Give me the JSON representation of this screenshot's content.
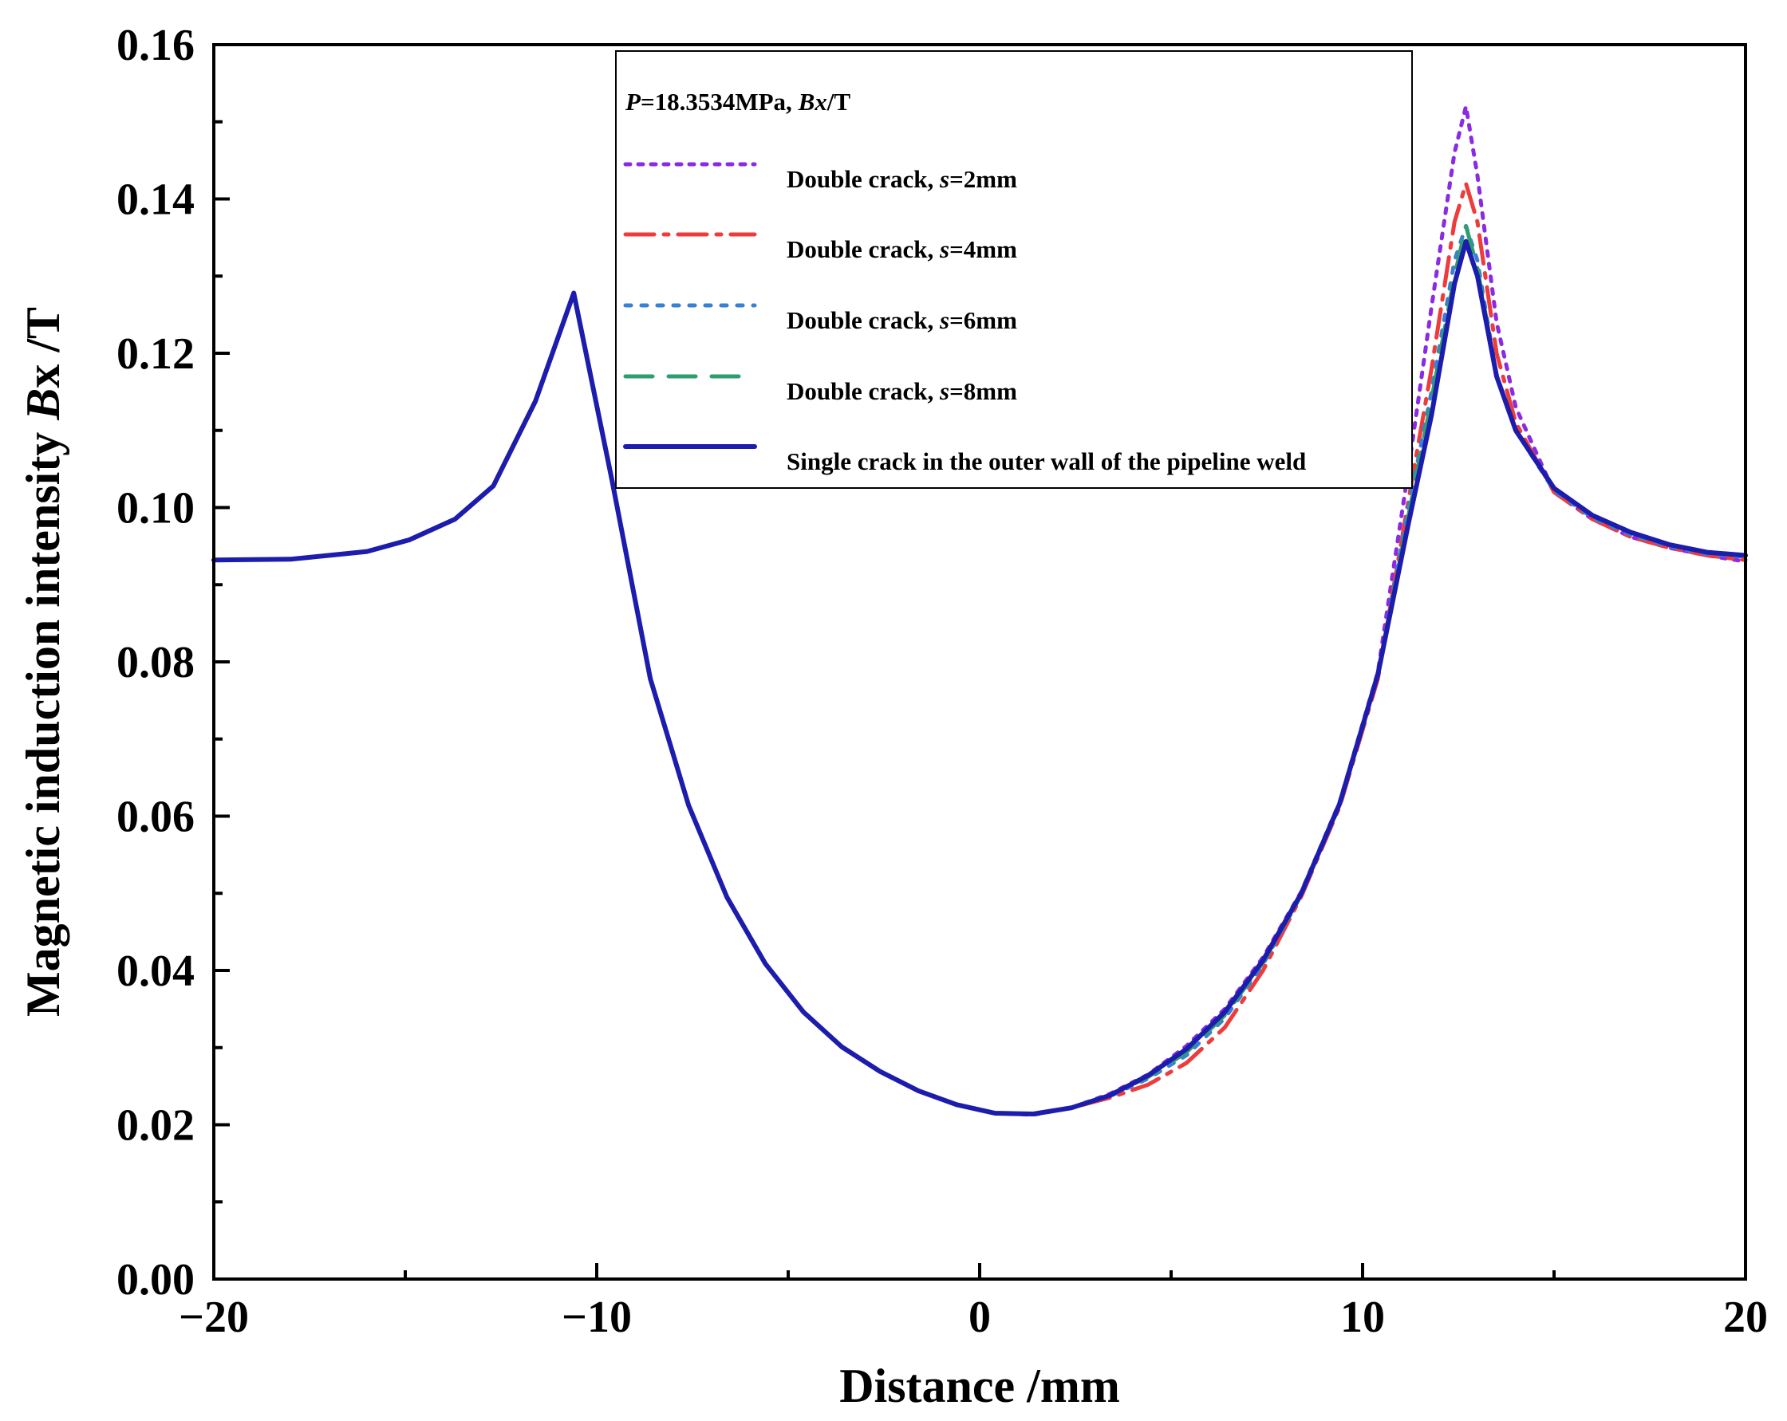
{
  "chart_data": {
    "type": "line",
    "title": "",
    "xlabel": "Distance /mm",
    "ylabel_parts": [
      "Magnetic induction intensity ",
      "B",
      "x",
      " /T"
    ],
    "xlim": [
      -20,
      20
    ],
    "ylim": [
      0,
      0.16
    ],
    "x_ticks": [
      -20,
      -10,
      0,
      10,
      20
    ],
    "x_tick_labels": [
      "−20",
      "−10",
      "0",
      "10",
      "20"
    ],
    "y_ticks": [
      0,
      0.02,
      0.04,
      0.06,
      0.08,
      0.1,
      0.12,
      0.14,
      0.16
    ],
    "y_tick_labels": [
      "0.00",
      "0.02",
      "0.04",
      "0.06",
      "0.08",
      "0.10",
      "0.12",
      "0.14",
      "0.16"
    ],
    "grid": false,
    "legend": {
      "placement": "top-center",
      "header_parts": [
        {
          "text": "P",
          "italic": true
        },
        {
          "text": "=18.3534MPa, ",
          "italic": false
        },
        {
          "text": "Bx",
          "italic": true
        },
        {
          "text": "/T",
          "italic": false
        }
      ]
    },
    "series": [
      {
        "name": "Double crack, s=2mm",
        "label_prefix": "Double crack, ",
        "label_italic": "s",
        "label_suffix": "=2mm",
        "color": "#8a2be2",
        "dash": "dot",
        "x": [
          -20,
          -18,
          -16,
          -14.9,
          -13.7,
          -12.7,
          -11.6,
          -10.6,
          -9.6,
          -8.6,
          -7.6,
          -6.6,
          -5.6,
          -4.6,
          -3.6,
          -2.6,
          -1.6,
          -0.6,
          0.4,
          1.4,
          2.4,
          3.4,
          4.4,
          5.4,
          6.4,
          7.4,
          8.4,
          9.4,
          10.4,
          11.2,
          11.8,
          12.4,
          12.7,
          13.0,
          13.5,
          14.0,
          15.0,
          16.0,
          17.0,
          18.0,
          19.0,
          20.0
        ],
        "values": [
          0.0932,
          0.0933,
          0.0943,
          0.0958,
          0.0985,
          0.1028,
          0.1138,
          0.1278,
          0.1035,
          0.0778,
          0.0614,
          0.0495,
          0.0409,
          0.0346,
          0.0301,
          0.0269,
          0.0244,
          0.0226,
          0.0215,
          0.0213,
          0.0222,
          0.024,
          0.0265,
          0.0302,
          0.035,
          0.0417,
          0.0502,
          0.0618,
          0.0787,
          0.105,
          0.126,
          0.146,
          0.152,
          0.143,
          0.124,
          0.113,
          0.102,
          0.0985,
          0.0962,
          0.0948,
          0.0938,
          0.093
        ]
      },
      {
        "name": "Double crack, s=4mm",
        "label_prefix": "Double crack, ",
        "label_italic": "s",
        "label_suffix": "=4mm",
        "color": "#ee3b3b",
        "dash": "dashdot",
        "x": [
          -20,
          -18,
          -16,
          -14.9,
          -13.7,
          -12.7,
          -11.6,
          -10.6,
          -9.6,
          -8.6,
          -7.6,
          -6.6,
          -5.6,
          -4.6,
          -3.6,
          -2.6,
          -1.6,
          -0.6,
          0.4,
          1.4,
          2.4,
          3.4,
          4.4,
          5.4,
          6.4,
          7.4,
          8.4,
          9.4,
          10.4,
          11.2,
          11.8,
          12.4,
          12.7,
          13.0,
          13.5,
          14.0,
          15.0,
          16.0,
          17.0,
          18.0,
          19.0,
          20.0
        ],
        "values": [
          0.0932,
          0.0933,
          0.0943,
          0.0958,
          0.0985,
          0.1028,
          0.1138,
          0.1278,
          0.1035,
          0.0778,
          0.0614,
          0.0495,
          0.0409,
          0.0346,
          0.0301,
          0.0269,
          0.0244,
          0.0226,
          0.0215,
          0.0214,
          0.0222,
          0.0235,
          0.0252,
          0.028,
          0.0326,
          0.04,
          0.0496,
          0.0612,
          0.0778,
          0.101,
          0.118,
          0.137,
          0.142,
          0.137,
          0.12,
          0.111,
          0.102,
          0.0985,
          0.0962,
          0.0948,
          0.0938,
          0.0932
        ]
      },
      {
        "name": "Double crack, s=6mm",
        "label_prefix": "Double crack, ",
        "label_italic": "s",
        "label_suffix": "=6mm",
        "color": "#3a7fd5",
        "dash": "densedot",
        "x": [
          -20,
          -18,
          -16,
          -14.9,
          -13.7,
          -12.7,
          -11.6,
          -10.6,
          -9.6,
          -8.6,
          -7.6,
          -6.6,
          -5.6,
          -4.6,
          -3.6,
          -2.6,
          -1.6,
          -0.6,
          0.4,
          1.4,
          2.4,
          3.4,
          4.4,
          5.4,
          6.4,
          7.4,
          8.4,
          9.4,
          10.4,
          11.2,
          11.8,
          12.4,
          12.7,
          13.0,
          13.5,
          14.0,
          15.0,
          16.0,
          17.0,
          18.0,
          19.0,
          20.0
        ],
        "values": [
          0.0932,
          0.0933,
          0.0943,
          0.0958,
          0.0985,
          0.1028,
          0.1138,
          0.1278,
          0.1035,
          0.0778,
          0.0614,
          0.0495,
          0.0409,
          0.0346,
          0.0301,
          0.0269,
          0.0244,
          0.0226,
          0.0215,
          0.0214,
          0.0222,
          0.0237,
          0.026,
          0.029,
          0.0338,
          0.0408,
          0.0498,
          0.0614,
          0.0782,
          0.1,
          0.115,
          0.132,
          0.1365,
          0.132,
          0.117,
          0.11,
          0.1022,
          0.0987,
          0.0965,
          0.095,
          0.094,
          0.0936
        ]
      },
      {
        "name": "Double crack, s=8mm",
        "label_prefix": "Double crack, ",
        "label_italic": "s",
        "label_suffix": "=8mm",
        "color": "#2e9e6e",
        "dash": "longdash",
        "x": [
          -20,
          -18,
          -16,
          -14.9,
          -13.7,
          -12.7,
          -11.6,
          -10.6,
          -9.6,
          -8.6,
          -7.6,
          -6.6,
          -5.6,
          -4.6,
          -3.6,
          -2.6,
          -1.6,
          -0.6,
          0.4,
          1.4,
          2.4,
          3.4,
          4.4,
          5.4,
          6.4,
          7.4,
          8.4,
          9.4,
          10.4,
          11.2,
          11.8,
          12.4,
          12.7,
          13.0,
          13.5,
          14.0,
          15.0,
          16.0,
          17.0,
          18.0,
          19.0,
          20.0
        ],
        "values": [
          0.0932,
          0.0933,
          0.0943,
          0.0958,
          0.0985,
          0.1028,
          0.1138,
          0.1278,
          0.1035,
          0.0778,
          0.0614,
          0.0495,
          0.0409,
          0.0346,
          0.0301,
          0.0269,
          0.0244,
          0.0226,
          0.0215,
          0.0214,
          0.0222,
          0.0238,
          0.0262,
          0.0294,
          0.0342,
          0.041,
          0.0499,
          0.0615,
          0.0783,
          0.099,
          0.114,
          0.13,
          0.1365,
          0.131,
          0.117,
          0.11,
          0.1025,
          0.099,
          0.0968,
          0.0952,
          0.0942,
          0.0938
        ]
      },
      {
        "name": "Single crack in the outer wall of the pipeline weld",
        "label_prefix": "Single crack in the outer wall of the pipeline weld",
        "label_italic": "",
        "label_suffix": "",
        "color": "#1c1cad",
        "dash": "solid",
        "x": [
          -20,
          -18,
          -16,
          -14.9,
          -13.7,
          -12.7,
          -11.6,
          -10.6,
          -9.6,
          -8.6,
          -7.6,
          -6.6,
          -5.6,
          -4.6,
          -3.6,
          -2.6,
          -1.6,
          -0.6,
          0.4,
          1.4,
          2.4,
          3.4,
          4.4,
          5.4,
          6.4,
          7.4,
          8.4,
          9.4,
          10.4,
          11.2,
          11.8,
          12.4,
          12.7,
          13.0,
          13.5,
          14.0,
          15.0,
          16.0,
          17.0,
          18.0,
          19.0,
          20.0
        ],
        "values": [
          0.0932,
          0.0933,
          0.0943,
          0.0958,
          0.0985,
          0.1028,
          0.1138,
          0.1278,
          0.1035,
          0.0778,
          0.0614,
          0.0495,
          0.0409,
          0.0346,
          0.0301,
          0.0269,
          0.0244,
          0.0226,
          0.0215,
          0.0214,
          0.0222,
          0.0238,
          0.0264,
          0.0298,
          0.0346,
          0.0413,
          0.05,
          0.0616,
          0.0784,
          0.098,
          0.112,
          0.129,
          0.1345,
          0.13,
          0.117,
          0.11,
          0.1025,
          0.099,
          0.0968,
          0.0952,
          0.0942,
          0.0938
        ]
      }
    ]
  }
}
